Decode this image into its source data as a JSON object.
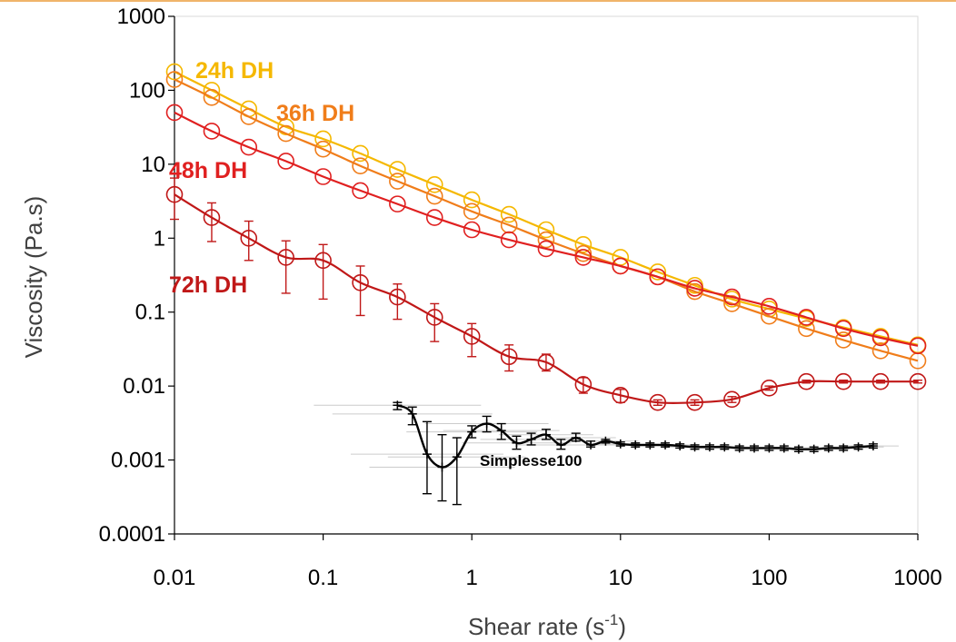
{
  "chart_data": {
    "type": "line",
    "xscale": "log",
    "yscale": "log",
    "xlim": [
      0.01,
      1000
    ],
    "ylim": [
      0.0001,
      1000
    ],
    "xticks": [
      "0.01",
      "0.1",
      "1",
      "10",
      "100",
      "1000"
    ],
    "yticks": [
      "0.0001",
      "0.001",
      "0.01",
      "0.1",
      "1",
      "10",
      "100",
      "1000"
    ],
    "xlabel": {
      "main": "Shear rate (s",
      "sup": "-1",
      "close": ")"
    },
    "ylabel": "Viscosity (Pa.s)",
    "series": [
      {
        "name": "24h DH",
        "color": "#f5b800",
        "marker": "circle",
        "x": [
          0.01,
          0.0178,
          0.0316,
          0.0562,
          0.1,
          0.178,
          0.316,
          0.562,
          1,
          1.78,
          3.16,
          5.62,
          10,
          17.8,
          31.6,
          56.2,
          100,
          178,
          316,
          562,
          1000
        ],
        "y": [
          178,
          100,
          56,
          32,
          22,
          14,
          8.5,
          5.3,
          3.3,
          2.1,
          1.3,
          0.82,
          0.55,
          0.35,
          0.23,
          0.15,
          0.11,
          0.082,
          0.062,
          0.047,
          0.036
        ]
      },
      {
        "name": "36h DH",
        "color": "#f07d1a",
        "marker": "circle",
        "x": [
          0.01,
          0.0178,
          0.0316,
          0.0562,
          0.1,
          0.178,
          0.316,
          0.562,
          1,
          1.78,
          3.16,
          5.62,
          10,
          17.8,
          31.6,
          56.2,
          100,
          178,
          316,
          562,
          1000
        ],
        "y": [
          140,
          80,
          44,
          26,
          16,
          9.5,
          5.9,
          3.7,
          2.3,
          1.5,
          0.95,
          0.62,
          0.42,
          0.3,
          0.19,
          0.13,
          0.088,
          0.06,
          0.042,
          0.03,
          0.022
        ]
      },
      {
        "name": "48h DH",
        "color": "#e02020",
        "marker": "circle",
        "x": [
          0.01,
          0.0178,
          0.0316,
          0.0562,
          0.1,
          0.178,
          0.316,
          0.562,
          1,
          1.78,
          3.16,
          5.62,
          10,
          17.8,
          31.6,
          56.2,
          100,
          178,
          316,
          562,
          1000
        ],
        "y": [
          50,
          28,
          17,
          11,
          6.8,
          4.4,
          2.9,
          1.9,
          1.3,
          0.95,
          0.72,
          0.55,
          0.42,
          0.3,
          0.21,
          0.16,
          0.12,
          0.085,
          0.06,
          0.045,
          0.035
        ]
      },
      {
        "name": "72h DH",
        "color": "#c01818",
        "marker": "circle",
        "x": [
          0.01,
          0.0178,
          0.0316,
          0.0562,
          0.1,
          0.178,
          0.316,
          0.562,
          1,
          1.78,
          3.16,
          5.62,
          10,
          17.8,
          31.6,
          56.2,
          100,
          178,
          316,
          562,
          1000
        ],
        "y": [
          3.9,
          1.9,
          1.0,
          0.55,
          0.5,
          0.25,
          0.16,
          0.085,
          0.047,
          0.025,
          0.021,
          0.0105,
          0.0075,
          0.006,
          0.006,
          0.0066,
          0.0094,
          0.0115,
          0.0115,
          0.0115,
          0.0115
        ],
        "err_low": [
          1.8,
          0.9,
          0.5,
          0.18,
          0.15,
          0.09,
          0.08,
          0.04,
          0.025,
          0.016,
          0.016,
          0.008,
          0.006,
          0.0055,
          0.0055,
          0.006,
          0.0088,
          0.011,
          0.011,
          0.011,
          0.011
        ],
        "err_high": [
          6.5,
          3.0,
          1.7,
          0.92,
          0.82,
          0.42,
          0.24,
          0.13,
          0.07,
          0.036,
          0.027,
          0.013,
          0.009,
          0.0065,
          0.0065,
          0.0072,
          0.01,
          0.012,
          0.012,
          0.012,
          0.012
        ]
      },
      {
        "name": "Simplesse100",
        "color": "#000000",
        "marker": "plus",
        "x": [
          0.316,
          0.398,
          0.5,
          0.631,
          0.794,
          1,
          1.26,
          1.58,
          2,
          2.51,
          3.16,
          3.98,
          5.01,
          6.31,
          7.94,
          10,
          12.6,
          15.8,
          20,
          25.1,
          31.6,
          39.8,
          50.1,
          63.1,
          79.4,
          100,
          126,
          158,
          200,
          251,
          316,
          398,
          501
        ],
        "y": [
          0.0055,
          0.0042,
          0.0012,
          0.0008,
          0.0011,
          0.0024,
          0.0031,
          0.0025,
          0.0017,
          0.0019,
          0.0022,
          0.0016,
          0.002,
          0.0016,
          0.0018,
          0.00165,
          0.0016,
          0.0016,
          0.0016,
          0.00155,
          0.0015,
          0.0015,
          0.0015,
          0.00145,
          0.00145,
          0.00145,
          0.00145,
          0.0014,
          0.0014,
          0.00145,
          0.00145,
          0.0015,
          0.00155
        ],
        "err_low": [
          0.0048,
          0.003,
          0.00035,
          0.00028,
          0.00025,
          0.002,
          0.0024,
          0.0019,
          0.0014,
          0.0016,
          0.0019,
          0.0014,
          0.0018,
          0.0015,
          0.0017,
          0.00155,
          0.0015,
          0.0015,
          0.0015,
          0.00145,
          0.0014,
          0.0014,
          0.0014,
          0.00135,
          0.00135,
          0.00135,
          0.00135,
          0.0013,
          0.0013,
          0.00135,
          0.00135,
          0.0014,
          0.00145
        ],
        "err_high": [
          0.006,
          0.0052,
          0.0033,
          0.0022,
          0.002,
          0.0029,
          0.0039,
          0.0031,
          0.0021,
          0.0023,
          0.0026,
          0.0019,
          0.0023,
          0.0018,
          0.0019,
          0.00175,
          0.0017,
          0.0017,
          0.0017,
          0.00165,
          0.0016,
          0.0016,
          0.0016,
          0.00155,
          0.00155,
          0.00155,
          0.00155,
          0.0015,
          0.0015,
          0.00155,
          0.00155,
          0.0016,
          0.00165
        ]
      }
    ],
    "labels": [
      "24h DH",
      "36h DH",
      "48h DH",
      "72h DH",
      "Simplesse100"
    ],
    "grid": false,
    "legend": "inline labels"
  }
}
